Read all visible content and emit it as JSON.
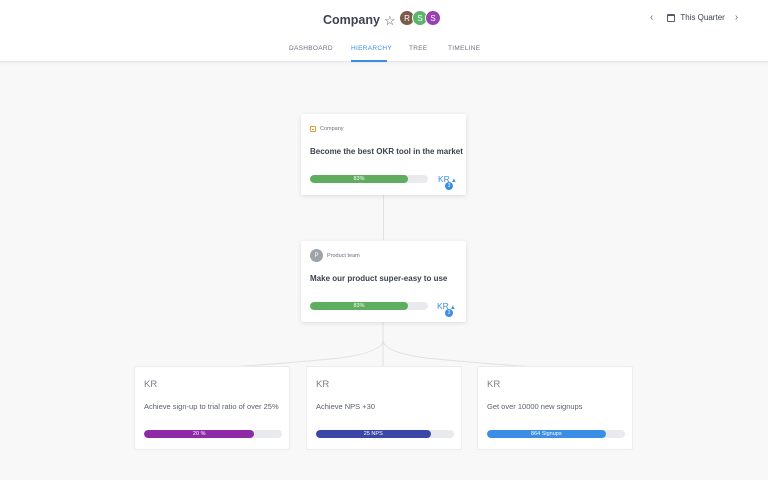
{
  "header": {
    "title": "Company",
    "star_icon": "star-outline-icon",
    "members": [
      {
        "initial": "R",
        "color": "#7a5c4a"
      },
      {
        "initial": "S",
        "color": "#5bb56a"
      },
      {
        "initial": "S",
        "color": "#9b3fb5"
      }
    ],
    "period": {
      "prev_icon": "chevron-left-icon",
      "calendar_icon": "calendar-icon",
      "label": "This Quarter",
      "next_icon": "chevron-right-icon"
    }
  },
  "tabs": [
    {
      "label": "DASHBOARD",
      "active": false
    },
    {
      "label": "HIERARCHY",
      "active": true
    },
    {
      "label": "TREE",
      "active": false
    },
    {
      "label": "TIMELINE",
      "active": false
    }
  ],
  "objectives": [
    {
      "owner": "Company",
      "owner_icon": "company-icon",
      "title": "Become the best OKR tool in the market",
      "progress_label": "83%",
      "progress": 0.83,
      "progress_color": "#5fae5f",
      "kr_label": "KR",
      "kr_count": "3"
    },
    {
      "owner": "Product team",
      "owner_initial": "P",
      "title": "Make our product super-easy to use",
      "progress_label": "83%",
      "progress": 0.83,
      "progress_color": "#5fae5f",
      "kr_label": "KR",
      "kr_count": "3"
    }
  ],
  "key_results": [
    {
      "label": "KR",
      "title": "Achieve sign-up to trial ratio of over 25%",
      "progress_label": "20 %",
      "progress": 0.8,
      "color": "#8e2aa5"
    },
    {
      "label": "KR",
      "title": "Achieve NPS +30",
      "progress_label": "25 NPS",
      "progress": 0.83,
      "color": "#3a46a8"
    },
    {
      "label": "KR",
      "title": "Get over 10000 new signups",
      "progress_label": "864 Signups",
      "progress": 0.86,
      "color": "#3a8ee6"
    }
  ]
}
